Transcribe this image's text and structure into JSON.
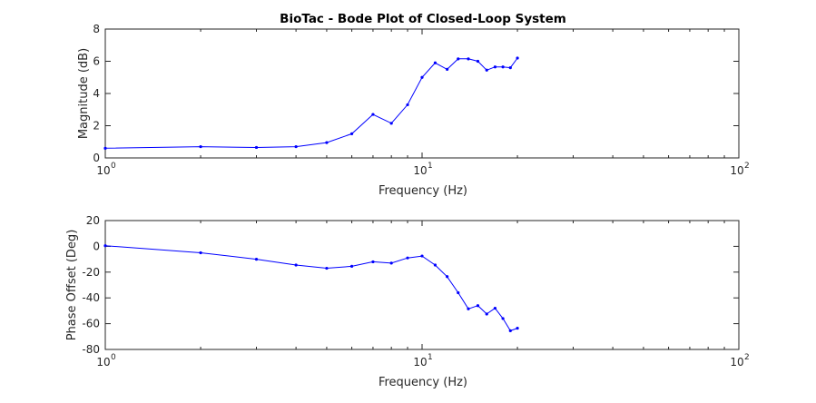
{
  "chart_data": [
    {
      "type": "line",
      "title": "BioTac - Bode Plot of Closed-Loop System",
      "xlabel": "Frequency (Hz)",
      "ylabel": "Magnitude (dB)",
      "xscale": "log",
      "xlim": [
        1,
        100
      ],
      "ylim": [
        0,
        8
      ],
      "xticks": [
        {
          "base": "10",
          "exp": "0",
          "value": 1
        },
        {
          "base": "10",
          "exp": "1",
          "value": 10
        },
        {
          "base": "10",
          "exp": "2",
          "value": 100
        }
      ],
      "yticks": [
        "0",
        "2",
        "4",
        "6",
        "8"
      ],
      "grid": false,
      "series": [
        {
          "color": "#0000ff",
          "x": [
            1,
            2,
            3,
            4,
            5,
            6,
            7,
            8,
            9,
            10,
            11,
            12,
            13,
            14,
            15,
            16,
            17,
            18,
            19,
            20
          ],
          "y": [
            0.6,
            0.7,
            0.65,
            0.7,
            0.95,
            1.5,
            2.7,
            2.15,
            3.3,
            5.0,
            5.9,
            5.5,
            6.15,
            6.15,
            6.0,
            5.45,
            5.65,
            5.65,
            5.6,
            6.2
          ]
        }
      ]
    },
    {
      "type": "line",
      "title": "",
      "xlabel": "Frequency (Hz)",
      "ylabel": "Phase Offset (Deg)",
      "xscale": "log",
      "xlim": [
        1,
        100
      ],
      "ylim": [
        -80,
        20
      ],
      "xticks": [
        {
          "base": "10",
          "exp": "0",
          "value": 1
        },
        {
          "base": "10",
          "exp": "1",
          "value": 10
        },
        {
          "base": "10",
          "exp": "2",
          "value": 100
        }
      ],
      "yticks": [
        "-80",
        "-60",
        "-40",
        "-20",
        "0",
        "20"
      ],
      "grid": false,
      "series": [
        {
          "color": "#0000ff",
          "x": [
            1,
            2,
            3,
            4,
            5,
            6,
            7,
            8,
            9,
            10,
            11,
            12,
            13,
            14,
            15,
            16,
            17,
            18,
            19,
            20
          ],
          "y": [
            0.5,
            -5,
            -10,
            -14.5,
            -17,
            -15.5,
            -12,
            -13,
            -9,
            -7.5,
            -14.5,
            -23.5,
            -36,
            -48.5,
            -46,
            -52.5,
            -48,
            -56,
            -65.5,
            -63.5
          ]
        }
      ]
    }
  ]
}
